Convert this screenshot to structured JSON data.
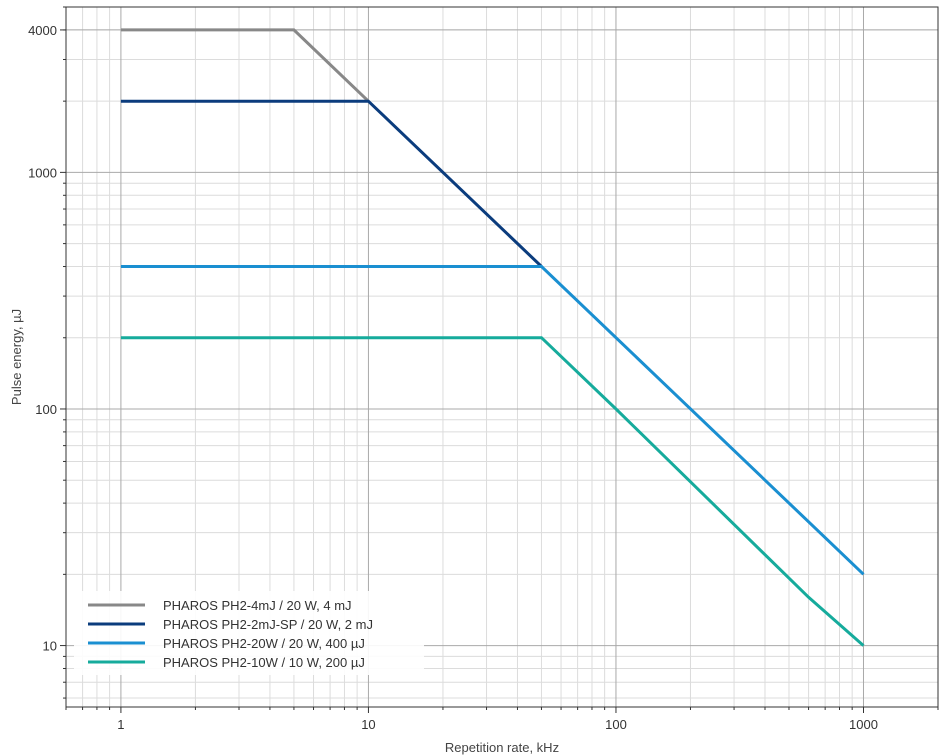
{
  "chart_data": {
    "type": "line",
    "xlabel": "Repetition rate, kHz",
    "ylabel": "Pulse energy, µJ",
    "xscale": "log",
    "yscale": "log",
    "xlim": [
      0.6,
      2000
    ],
    "ylim": [
      5.5,
      5000
    ],
    "x_ticks": [
      1,
      10,
      100,
      1000
    ],
    "x_tick_labels": [
      "1",
      "10",
      "100",
      "1000"
    ],
    "y_ticks": [
      10,
      100,
      1000,
      4000
    ],
    "y_tick_labels": [
      "10",
      "100",
      "1000",
      "4000"
    ],
    "grid": true,
    "legend_position": "bottom-left",
    "series": [
      {
        "name": "PHAROS PH2-4mJ / 20 W, 4 mJ",
        "color": "#888888",
        "x": [
          1,
          5,
          10
        ],
        "y": [
          4000,
          4000,
          2000
        ]
      },
      {
        "name": "PHAROS PH2-2mJ-SP / 20 W, 2 mJ",
        "color": "#0b3c7d",
        "x": [
          1,
          10,
          50
        ],
        "y": [
          2000,
          2000,
          400
        ]
      },
      {
        "name": "PHAROS PH2-20W / 20 W, 400 µJ",
        "color": "#1a8fd1",
        "x": [
          1,
          50,
          1000
        ],
        "y": [
          400,
          400,
          20
        ]
      },
      {
        "name": "PHAROS PH2-10W / 10 W, 200 µJ",
        "color": "#16ab9c",
        "x": [
          1,
          50,
          100,
          600,
          1000
        ],
        "y": [
          200,
          200,
          100,
          16,
          10
        ]
      }
    ]
  }
}
